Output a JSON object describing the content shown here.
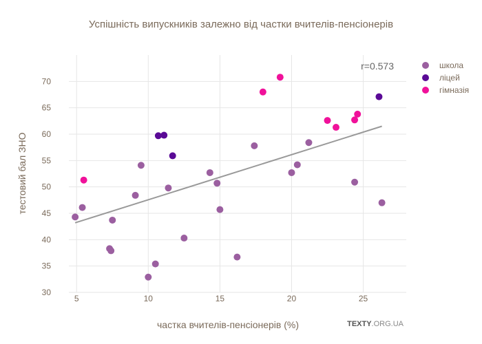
{
  "chart_data": {
    "type": "scatter",
    "title": "Успішність випускників залежно від частки вчителів-пенсіонерів",
    "xlabel": "частка вчителів-пенсіонерів (%)",
    "ylabel": "тестовий бал ЗНО",
    "xlim": [
      3.5,
      28
    ],
    "ylim": [
      30,
      75
    ],
    "xticks": [
      5,
      10,
      15,
      20,
      25
    ],
    "yticks": [
      30,
      35,
      40,
      45,
      50,
      55,
      60,
      65,
      70
    ],
    "grid": true,
    "legend_position": "top-right",
    "series": [
      {
        "name": "школа",
        "color": "#9b5fa0",
        "points": [
          {
            "x": 4.9,
            "y": 44.3
          },
          {
            "x": 5.4,
            "y": 46.1
          },
          {
            "x": 7.3,
            "y": 38.3
          },
          {
            "x": 7.4,
            "y": 37.9
          },
          {
            "x": 7.5,
            "y": 43.7
          },
          {
            "x": 9.1,
            "y": 48.4
          },
          {
            "x": 9.5,
            "y": 54.1
          },
          {
            "x": 10.0,
            "y": 32.9
          },
          {
            "x": 10.5,
            "y": 35.4
          },
          {
            "x": 11.4,
            "y": 49.8
          },
          {
            "x": 12.5,
            "y": 40.3
          },
          {
            "x": 14.3,
            "y": 52.7
          },
          {
            "x": 14.8,
            "y": 50.7
          },
          {
            "x": 15.0,
            "y": 45.7
          },
          {
            "x": 16.2,
            "y": 36.7
          },
          {
            "x": 17.4,
            "y": 57.8
          },
          {
            "x": 20.0,
            "y": 52.7
          },
          {
            "x": 20.4,
            "y": 54.2
          },
          {
            "x": 21.2,
            "y": 58.4
          },
          {
            "x": 24.4,
            "y": 50.9
          },
          {
            "x": 26.3,
            "y": 47.0
          }
        ]
      },
      {
        "name": "ліцей",
        "color": "#5a0a96",
        "points": [
          {
            "x": 10.7,
            "y": 59.7
          },
          {
            "x": 11.1,
            "y": 59.8
          },
          {
            "x": 11.7,
            "y": 55.9
          },
          {
            "x": 26.1,
            "y": 67.1
          }
        ]
      },
      {
        "name": "гімназія",
        "color": "#f0119a",
        "points": [
          {
            "x": 5.5,
            "y": 51.3
          },
          {
            "x": 18.0,
            "y": 68.0
          },
          {
            "x": 19.2,
            "y": 70.8
          },
          {
            "x": 22.5,
            "y": 62.6
          },
          {
            "x": 23.1,
            "y": 61.3
          },
          {
            "x": 24.4,
            "y": 62.7
          },
          {
            "x": 24.6,
            "y": 63.8
          }
        ]
      }
    ],
    "trendline": {
      "color": "#999999",
      "x": [
        4.9,
        26.3
      ],
      "y": [
        43.2,
        61.5
      ]
    },
    "annotation": "r=0.573",
    "credit": {
      "main": "TEXTY",
      "sub": ".ORG.UA"
    }
  }
}
